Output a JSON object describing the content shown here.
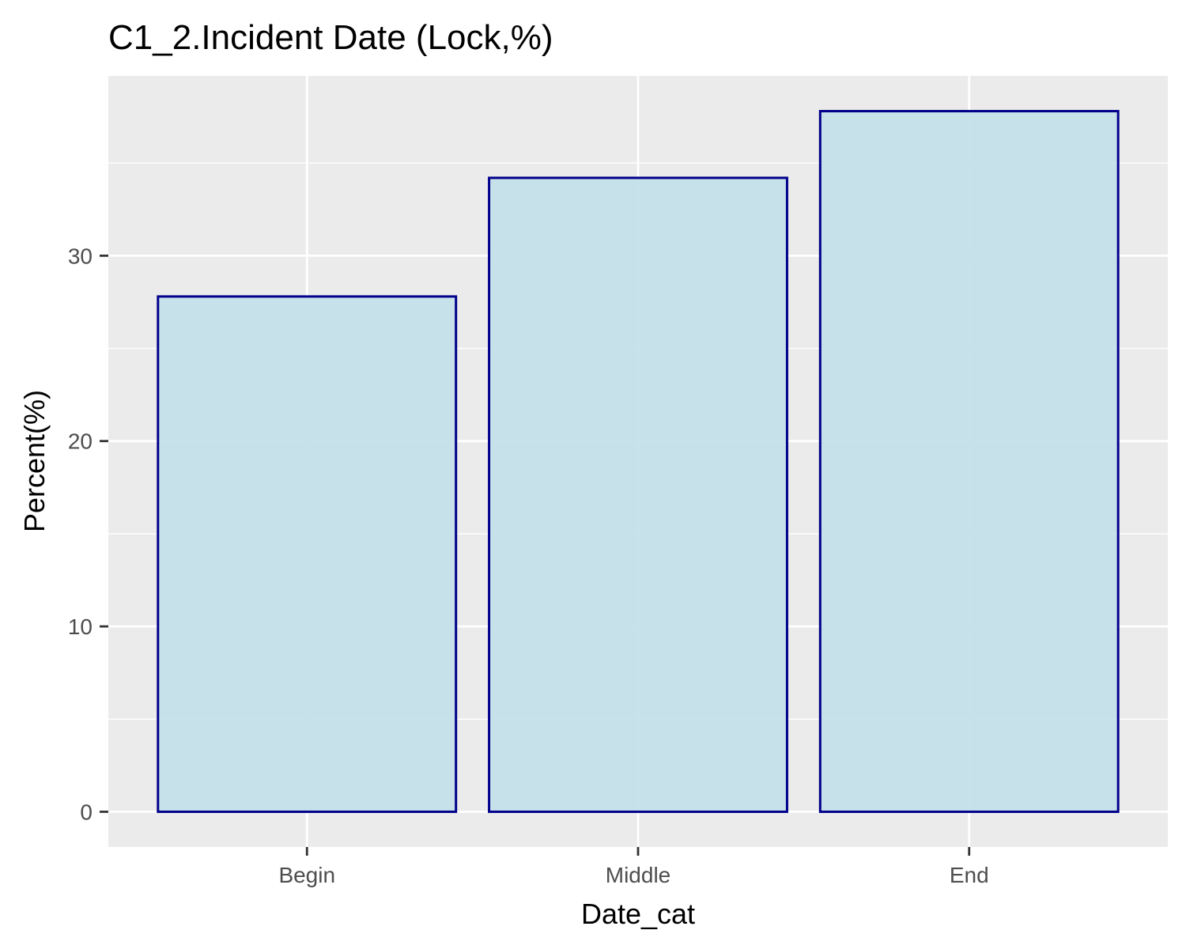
{
  "chart_data": {
    "type": "bar",
    "title": "C1_2.Incident Date (Lock,%)",
    "xlabel": "Date_cat",
    "ylabel": "Percent(%)",
    "categories": [
      "Begin",
      "Middle",
      "End"
    ],
    "values": [
      27.8,
      34.2,
      37.8
    ],
    "ylim": [
      -1.9,
      39.7
    ],
    "yticks": [
      0,
      10,
      20,
      30
    ],
    "yticks_labels": [
      "0",
      "10",
      "20",
      "30"
    ],
    "grid": true,
    "legend": "none",
    "colors": {
      "bar_fill": "#c2dfe8",
      "bar_stroke": "#00008b",
      "panel_background": "#ebebeb",
      "grid": "#ffffff",
      "tick_label": "#4d4d4d",
      "tick_mark": "#333333"
    }
  }
}
